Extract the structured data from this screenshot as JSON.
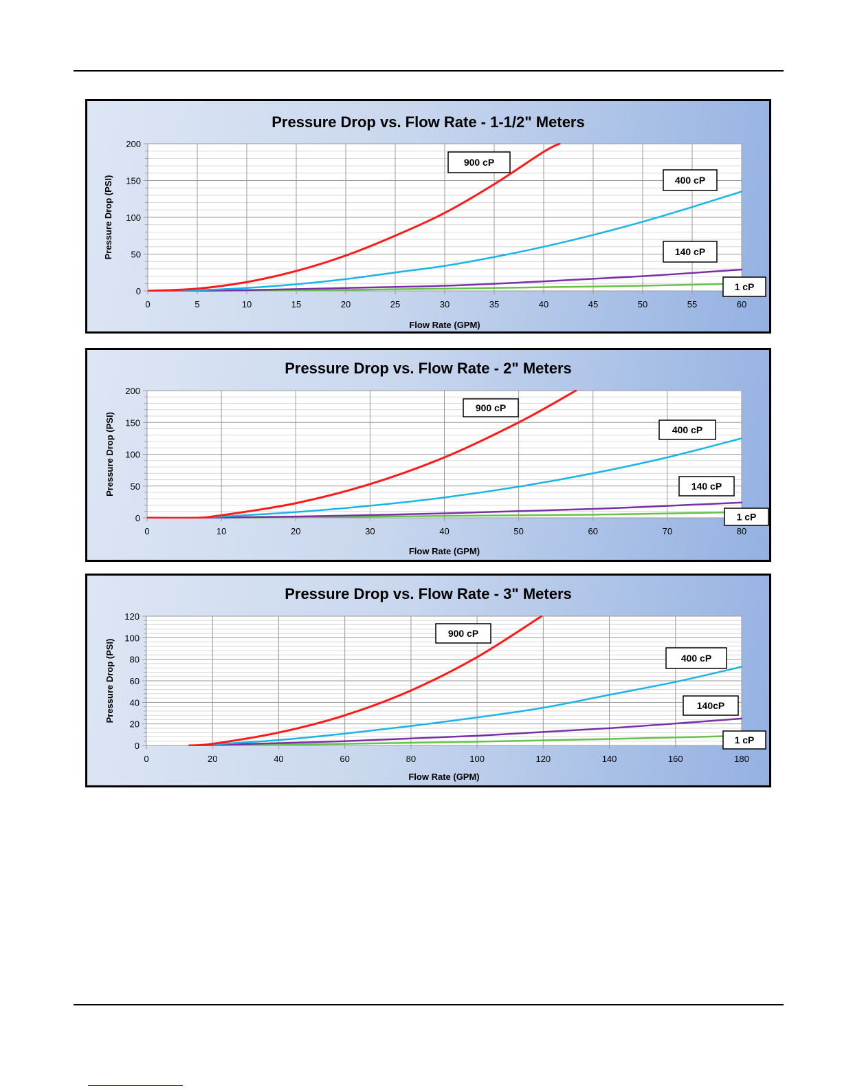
{
  "chart_data": [
    {
      "type": "line",
      "title": "Pressure Drop  vs. Flow Rate - 1-1/2\" Meters",
      "xlabel": "Flow Rate (GPM)",
      "ylabel": "Pressure Drop (PSI)",
      "xlim": [
        0,
        60
      ],
      "ylim": [
        0,
        200
      ],
      "xticks": [
        0,
        5,
        10,
        15,
        20,
        25,
        30,
        35,
        40,
        45,
        50,
        55,
        60
      ],
      "yticks": [
        0,
        50,
        100,
        150,
        200
      ],
      "grid": true,
      "series": [
        {
          "name": "900 cP",
          "color": "#ff1a1a",
          "x": [
            0,
            5,
            10,
            15,
            20,
            25,
            30,
            35,
            40,
            41.6
          ],
          "y": [
            0,
            3,
            12,
            27,
            48,
            75,
            106,
            145,
            189,
            200
          ]
        },
        {
          "name": "400 cP",
          "color": "#19b4e8",
          "x": [
            0,
            5,
            10,
            15,
            20,
            25,
            30,
            35,
            40,
            45,
            50,
            55,
            60
          ],
          "y": [
            0,
            1,
            4,
            9,
            16,
            25,
            34,
            46,
            60,
            76,
            94,
            114,
            135
          ]
        },
        {
          "name": "140 cP",
          "color": "#7a2fa8",
          "x": [
            0,
            10,
            20,
            30,
            40,
            50,
            60
          ],
          "y": [
            0,
            1,
            4,
            7,
            13,
            20,
            29
          ]
        },
        {
          "name": "1 cP",
          "color": "#66c24a",
          "x": [
            0,
            10,
            20,
            30,
            40,
            50,
            60
          ],
          "y": [
            0,
            0.5,
            1.5,
            3,
            5,
            7,
            10
          ]
        }
      ]
    },
    {
      "type": "line",
      "title": "Pressure Drop vs. Flow Rate - 2\" Meters",
      "xlabel": "Flow Rate (GPM)",
      "ylabel": "Pressure Drop (PSI)",
      "xlim": [
        0,
        80
      ],
      "ylim": [
        0,
        200
      ],
      "xticks": [
        0,
        10,
        20,
        30,
        40,
        50,
        60,
        70,
        80
      ],
      "yticks": [
        0,
        50,
        100,
        150,
        200
      ],
      "grid": true,
      "series": [
        {
          "name": "900 cP",
          "color": "#ff1a1a",
          "x": [
            0,
            6.5,
            10,
            20,
            30,
            40,
            50,
            57.7
          ],
          "y": [
            0,
            0,
            4,
            23,
            53,
            95,
            150,
            200
          ]
        },
        {
          "name": "400 cP",
          "color": "#19b4e8",
          "x": [
            0,
            6.5,
            10,
            20,
            30,
            40,
            50,
            60,
            70,
            80
          ],
          "y": [
            0,
            0,
            2,
            9,
            19,
            32,
            49,
            70,
            95,
            125
          ]
        },
        {
          "name": "140 cP",
          "color": "#7a2fa8",
          "x": [
            0,
            6.5,
            20,
            40,
            60,
            80
          ],
          "y": [
            0,
            0,
            2,
            7,
            14,
            24
          ]
        },
        {
          "name": "1 cP",
          "color": "#66c24a",
          "x": [
            0,
            6.5,
            20,
            40,
            60,
            80
          ],
          "y": [
            0,
            0,
            1,
            3,
            5,
            9
          ]
        }
      ]
    },
    {
      "type": "line",
      "title": "Pressure Drop vs. Flow Rate - 3\" Meters",
      "xlabel": "Flow Rate (GPM)",
      "ylabel": "Pressure Drop (PSI)",
      "xlim": [
        0,
        180
      ],
      "ylim": [
        0,
        120
      ],
      "xticks": [
        0,
        20,
        40,
        60,
        80,
        100,
        120,
        140,
        160,
        180
      ],
      "yticks": [
        0,
        20,
        40,
        60,
        80,
        100,
        120
      ],
      "grid": true,
      "series": [
        {
          "name": "900 cP",
          "color": "#ff1a1a",
          "x": [
            13,
            20,
            40,
            60,
            80,
            100,
            119.5
          ],
          "y": [
            0,
            1.5,
            12,
            28,
            51,
            82,
            120
          ]
        },
        {
          "name": "400 cP",
          "color": "#19b4e8",
          "x": [
            13,
            20,
            40,
            60,
            80,
            100,
            120,
            140,
            160,
            180
          ],
          "y": [
            0,
            1,
            5,
            11,
            18,
            26,
            35,
            47,
            59,
            73
          ]
        },
        {
          "name": "140cP",
          "color": "#7a2fa8",
          "x": [
            13,
            20,
            60,
            100,
            140,
            180
          ],
          "y": [
            0,
            0.5,
            4,
            9,
            16,
            25
          ]
        },
        {
          "name": "1 cP",
          "color": "#66c24a",
          "x": [
            13,
            20,
            60,
            100,
            140,
            180
          ],
          "y": [
            0,
            0.2,
            1.5,
            3.5,
            6,
            9
          ]
        }
      ]
    }
  ]
}
